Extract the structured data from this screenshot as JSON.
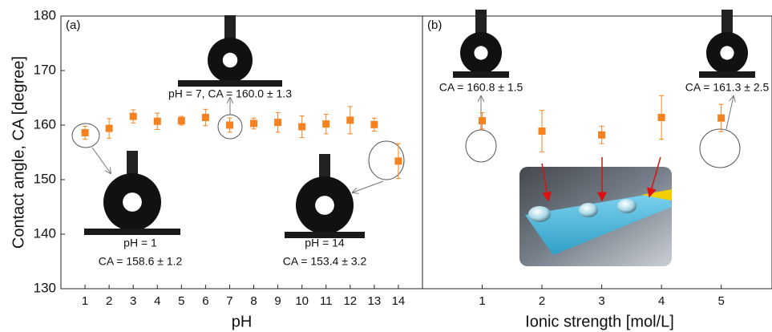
{
  "chart_data": [
    {
      "type": "errorbar",
      "panel_label": "(a)",
      "xlabel": "pH",
      "ylabel": "Contact angle, CA [degree]",
      "x": [
        1,
        2,
        3,
        4,
        5,
        6,
        7,
        8,
        9,
        10,
        11,
        12,
        13,
        14
      ],
      "values": [
        158.6,
        159.4,
        161.6,
        160.7,
        160.8,
        161.4,
        160.0,
        160.3,
        160.5,
        159.7,
        160.2,
        160.9,
        160.1,
        153.4
      ],
      "errors": [
        1.2,
        1.8,
        1.2,
        1.5,
        0.8,
        1.5,
        1.3,
        1.0,
        1.8,
        2.0,
        1.8,
        2.5,
        1.2,
        3.2
      ],
      "color": "#f58220",
      "xlim": [
        0,
        15
      ],
      "xticks": [
        1,
        2,
        3,
        4,
        5,
        6,
        7,
        8,
        9,
        10,
        11,
        12,
        13,
        14
      ],
      "ylim": [
        130,
        180
      ],
      "yticks": [
        130,
        140,
        150,
        160,
        170,
        180
      ],
      "annotations": [
        "pH = 7, CA = 160.0 ± 1.3",
        "pH = 1",
        "CA = 158.6 ± 1.2",
        "pH = 14",
        "CA = 153.4 ± 3.2"
      ]
    },
    {
      "type": "errorbar",
      "panel_label": "(b)",
      "xlabel": "Ionic strength [mol/L]",
      "x": [
        1,
        2,
        3,
        4,
        5
      ],
      "values": [
        160.8,
        158.9,
        158.2,
        161.4,
        161.3
      ],
      "errors": [
        1.5,
        3.8,
        1.6,
        4.0,
        2.5
      ],
      "color": "#f58220",
      "xlim": [
        0,
        5.85
      ],
      "xticks": [
        1,
        2,
        3,
        4,
        5
      ],
      "ylim": [
        130,
        180
      ],
      "annotations": [
        "CA = 160.8 ± 1.5",
        "CA = 161.3 ± 2.5"
      ]
    }
  ]
}
